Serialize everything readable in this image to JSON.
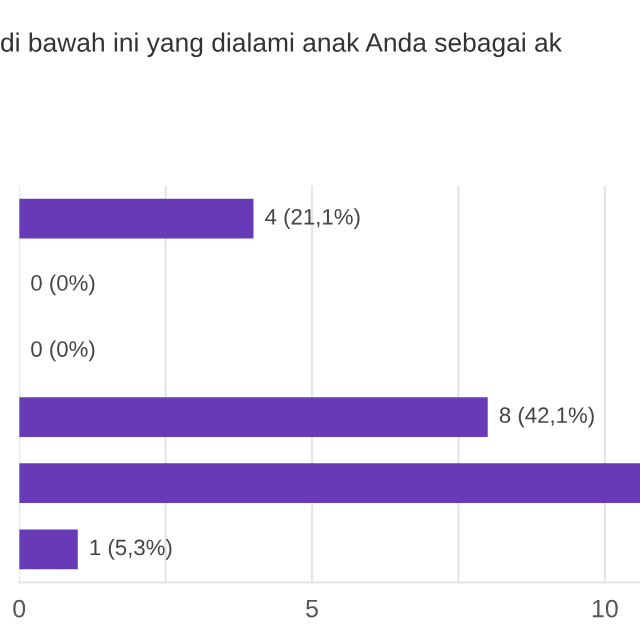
{
  "chart_data": {
    "type": "bar",
    "orientation": "horizontal",
    "title": "di bawah ini yang dialami anak Anda sebagai ak",
    "categories": [
      null,
      null,
      null,
      null,
      null,
      null
    ],
    "values": [
      4,
      0,
      0,
      8,
      10.6,
      1
    ],
    "value_labels": [
      "4 (21,1%)",
      "0 (0%)",
      "0 (0%)",
      "8 (42,1%)",
      null,
      "1 (5,3%)"
    ],
    "color": "#673ab7",
    "xlim": [
      0,
      10.6
    ],
    "xticks": [
      0,
      {
        "value": 2.5,
        "label": null
      },
      5,
      {
        "value": 7.5,
        "label": null
      },
      10
    ],
    "grid": "x",
    "legend": false
  }
}
